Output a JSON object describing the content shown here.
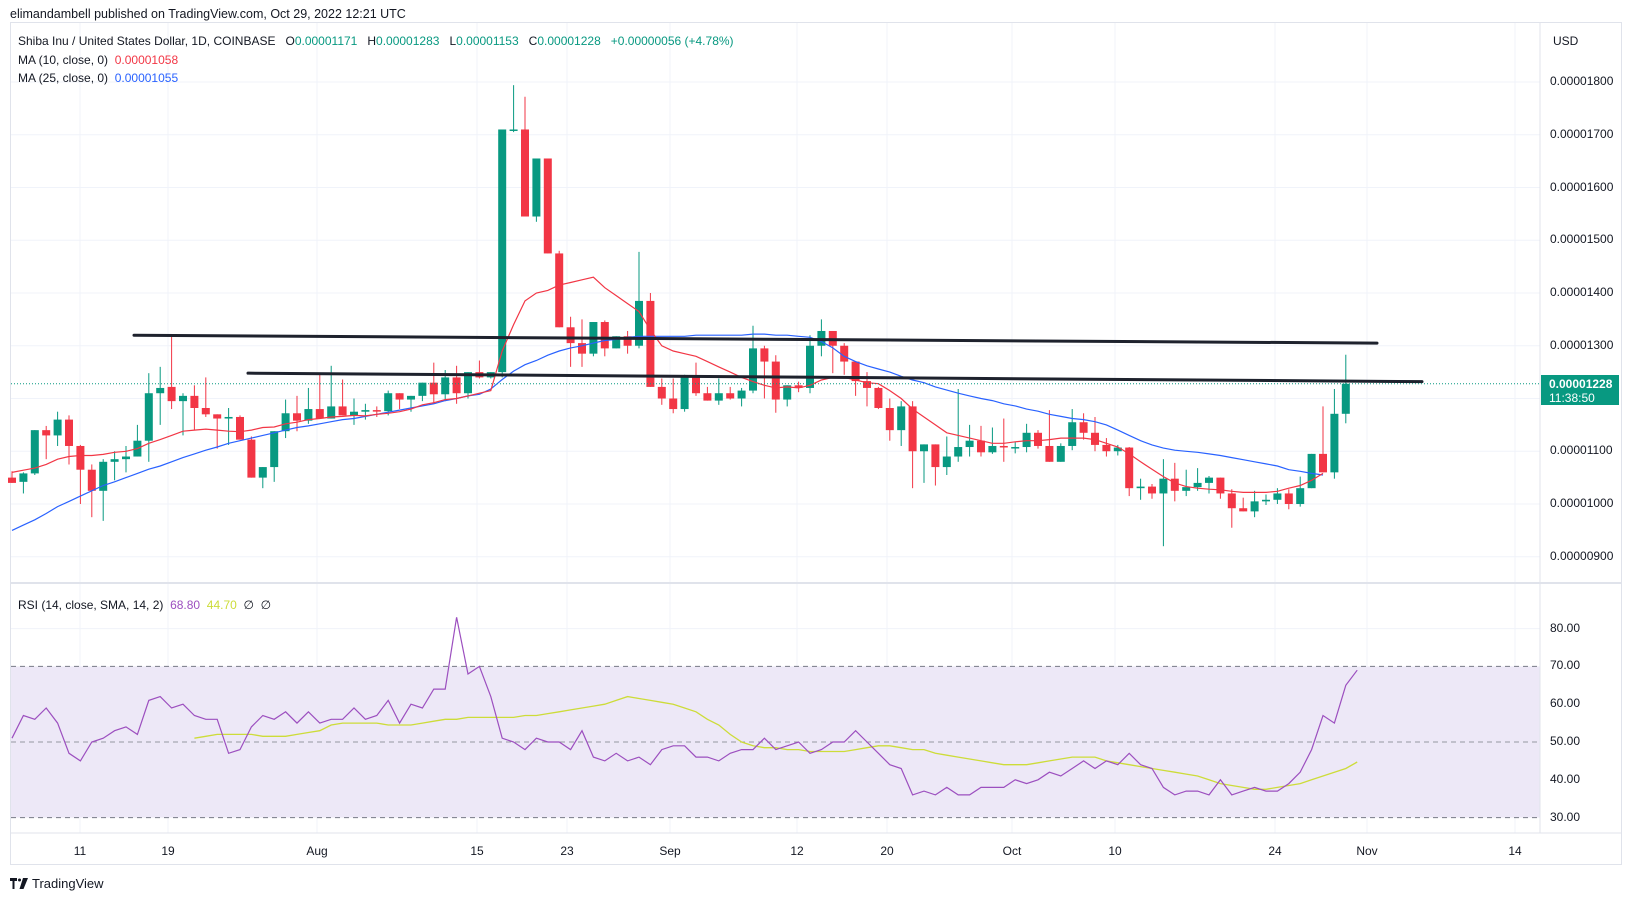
{
  "publisher": "elimandambell published on TradingView.com, Oct 29, 2022 12:21 UTC",
  "header": {
    "symbol": "Shiba Inu / United States Dollar, 1D, COINBASE",
    "open_label": "O",
    "open": "0.00001171",
    "high_label": "H",
    "high": "0.00001283",
    "low_label": "L",
    "low": "0.00001153",
    "close_label": "C",
    "close": "0.00001228",
    "change": "+0.00000056 (+4.78%)"
  },
  "indicators": {
    "ma10": {
      "label": "MA (10, close, 0)",
      "value": "0.00001058",
      "color": "#f23645"
    },
    "ma25": {
      "label": "MA (25, close, 0)",
      "value": "0.00001055",
      "color": "#2962ff"
    },
    "rsi": {
      "label": "RSI (14, close, SMA, 14, 2)",
      "value": "68.80",
      "sma_value": "44.70",
      "na1": "∅",
      "na2": "∅",
      "color": "#9c4fbf",
      "sma_color": "#cddc39"
    }
  },
  "price_axis": {
    "currency": "USD",
    "ticks": [
      "0.00001800",
      "0.00001700",
      "0.00001600",
      "0.00001500",
      "0.00001400",
      "0.00001300",
      "0.00001100",
      "0.00001000",
      "0.00000900"
    ],
    "current_price": "0.00001228",
    "countdown": "11:38:50"
  },
  "rsi_axis": {
    "ticks": [
      "80.00",
      "70.00",
      "60.00",
      "50.00",
      "40.00",
      "30.00"
    ]
  },
  "time_axis": {
    "ticks": [
      "11",
      "19",
      "Aug",
      "15",
      "23",
      "Sep",
      "12",
      "20",
      "Oct",
      "10",
      "24",
      "Nov",
      "14"
    ]
  },
  "footer": {
    "brand": "TradingView"
  },
  "colors": {
    "up": "#089981",
    "down": "#f23645",
    "ma10": "#f23645",
    "ma25": "#2962ff",
    "rsi": "#9c4fbf",
    "rsi_sma": "#cddc39",
    "trendline": "#1e222d",
    "rsi_band": "#ede8f7"
  },
  "chart_data": {
    "type": "candlestick",
    "title": "Shiba Inu / United States Dollar, 1D, COINBASE",
    "units": "USD x 1e-8",
    "x_start": "2022-07-05",
    "x_end": "2022-10-29",
    "ylim": [
      850,
      1850
    ],
    "ylabel": "USD",
    "ohlc": [
      [
        1050,
        1062,
        1045,
        1040
      ],
      [
        1042,
        1060,
        1020,
        1058
      ],
      [
        1058,
        1130,
        1055,
        1140
      ],
      [
        1140,
        1148,
        1085,
        1130
      ],
      [
        1130,
        1175,
        1110,
        1160
      ],
      [
        1160,
        1168,
        1075,
        1110
      ],
      [
        1110,
        1112,
        1000,
        1065
      ],
      [
        1065,
        1075,
        975,
        1025
      ],
      [
        1025,
        1085,
        968,
        1080
      ],
      [
        1080,
        1100,
        1045,
        1085
      ],
      [
        1085,
        1110,
        1060,
        1090
      ],
      [
        1090,
        1150,
        1090,
        1120
      ],
      [
        1120,
        1248,
        1080,
        1210
      ],
      [
        1210,
        1260,
        1150,
        1220
      ],
      [
        1222,
        1318,
        1180,
        1195
      ],
      [
        1195,
        1210,
        1130,
        1205
      ],
      [
        1205,
        1225,
        1140,
        1182
      ],
      [
        1182,
        1240,
        1165,
        1170
      ],
      [
        1170,
        1170,
        1105,
        1162
      ],
      [
        1162,
        1182,
        1112,
        1165
      ],
      [
        1165,
        1168,
        1125,
        1122
      ],
      [
        1122,
        1128,
        1060,
        1050
      ],
      [
        1050,
        1070,
        1030,
        1070
      ],
      [
        1070,
        1138,
        1042,
        1138
      ],
      [
        1138,
        1198,
        1125,
        1172
      ],
      [
        1172,
        1205,
        1138,
        1158
      ],
      [
        1158,
        1220,
        1152,
        1180
      ],
      [
        1180,
        1248,
        1165,
        1162
      ],
      [
        1162,
        1262,
        1170,
        1185
      ],
      [
        1185,
        1236,
        1180,
        1168
      ],
      [
        1168,
        1200,
        1150,
        1175
      ],
      [
        1175,
        1190,
        1160,
        1178
      ],
      [
        1178,
        1185,
        1165,
        1176
      ],
      [
        1176,
        1215,
        1168,
        1210
      ],
      [
        1210,
        1208,
        1180,
        1198
      ],
      [
        1198,
        1205,
        1175,
        1205
      ],
      [
        1205,
        1225,
        1195,
        1230
      ],
      [
        1230,
        1268,
        1190,
        1208
      ],
      [
        1208,
        1254,
        1195,
        1240
      ],
      [
        1240,
        1262,
        1190,
        1210
      ],
      [
        1210,
        1230,
        1200,
        1250
      ],
      [
        1250,
        1272,
        1238,
        1240
      ],
      [
        1240,
        1245,
        1238,
        1250
      ],
      [
        1250,
        1270,
        1240,
        1710
      ],
      [
        1710,
        1794,
        1705,
        1710
      ],
      [
        1710,
        1772,
        1580,
        1545
      ],
      [
        1545,
        1653,
        1535,
        1655
      ],
      [
        1655,
        1632,
        1475,
        1475
      ],
      [
        1475,
        1480,
        1350,
        1335
      ],
      [
        1335,
        1355,
        1260,
        1305
      ],
      [
        1305,
        1350,
        1260,
        1285
      ],
      [
        1285,
        1340,
        1280,
        1345
      ],
      [
        1345,
        1348,
        1280,
        1295
      ],
      [
        1295,
        1310,
        1300,
        1318
      ],
      [
        1318,
        1328,
        1285,
        1300
      ],
      [
        1300,
        1478,
        1295,
        1385
      ],
      [
        1385,
        1400,
        1228,
        1222
      ],
      [
        1222,
        1238,
        1188,
        1200
      ],
      [
        1200,
        1238,
        1172,
        1180
      ],
      [
        1180,
        1245,
        1175,
        1240
      ],
      [
        1240,
        1268,
        1205,
        1210
      ],
      [
        1210,
        1222,
        1200,
        1196
      ],
      [
        1196,
        1238,
        1188,
        1210
      ],
      [
        1210,
        1222,
        1198,
        1200
      ],
      [
        1200,
        1220,
        1185,
        1215
      ],
      [
        1215,
        1338,
        1210,
        1295
      ],
      [
        1295,
        1300,
        1200,
        1270
      ],
      [
        1270,
        1282,
        1173,
        1198
      ],
      [
        1198,
        1225,
        1185,
        1225
      ],
      [
        1225,
        1232,
        1212,
        1220
      ],
      [
        1220,
        1320,
        1210,
        1300
      ],
      [
        1300,
        1350,
        1280,
        1328
      ],
      [
        1328,
        1320,
        1248,
        1300
      ],
      [
        1300,
        1305,
        1245,
        1270
      ],
      [
        1270,
        1265,
        1205,
        1233
      ],
      [
        1233,
        1250,
        1185,
        1220
      ],
      [
        1220,
        1222,
        1180,
        1182
      ],
      [
        1182,
        1200,
        1120,
        1140
      ],
      [
        1140,
        1195,
        1110,
        1185
      ],
      [
        1185,
        1195,
        1030,
        1100
      ],
      [
        1100,
        1100,
        1040,
        1113
      ],
      [
        1113,
        1112,
        1035,
        1070
      ],
      [
        1070,
        1128,
        1055,
        1090
      ],
      [
        1090,
        1218,
        1080,
        1108
      ],
      [
        1108,
        1150,
        1090,
        1120
      ],
      [
        1120,
        1148,
        1090,
        1098
      ],
      [
        1098,
        1145,
        1095,
        1110
      ],
      [
        1110,
        1162,
        1080,
        1108
      ],
      [
        1108,
        1118,
        1096,
        1108
      ],
      [
        1108,
        1152,
        1098,
        1135
      ],
      [
        1135,
        1140,
        1105,
        1110
      ],
      [
        1110,
        1178,
        1120,
        1080
      ],
      [
        1080,
        1115,
        1090,
        1110
      ],
      [
        1110,
        1180,
        1102,
        1155
      ],
      [
        1155,
        1172,
        1122,
        1135
      ],
      [
        1135,
        1165,
        1100,
        1112
      ],
      [
        1112,
        1125,
        1090,
        1100
      ],
      [
        1100,
        1112,
        1092,
        1107
      ],
      [
        1107,
        1108,
        1015,
        1030
      ],
      [
        1030,
        1048,
        1008,
        1033
      ],
      [
        1033,
        1038,
        1010,
        1020
      ],
      [
        1020,
        1085,
        920,
        1048
      ],
      [
        1048,
        1078,
        1005,
        1025
      ],
      [
        1025,
        1065,
        1015,
        1032
      ],
      [
        1032,
        1068,
        1025,
        1040
      ],
      [
        1040,
        1053,
        1020,
        1050
      ],
      [
        1050,
        1038,
        1010,
        1020
      ],
      [
        1020,
        1028,
        955,
        992
      ],
      [
        992,
        1012,
        990,
        986
      ],
      [
        986,
        1025,
        975,
        1005
      ],
      [
        1005,
        1018,
        998,
        1008
      ],
      [
        1008,
        1030,
        1000,
        1020
      ],
      [
        1020,
        1028,
        990,
        1000
      ],
      [
        1000,
        1052,
        995,
        1030
      ],
      [
        1030,
        1085,
        1030,
        1095
      ],
      [
        1095,
        1185,
        1060,
        1060
      ],
      [
        1060,
        1218,
        1048,
        1171
      ],
      [
        1171,
        1283,
        1153,
        1228
      ]
    ],
    "ma10": [
      1060,
      1064,
      1068,
      1075,
      1085,
      1090,
      1092,
      1092,
      1094,
      1098,
      1100,
      1105,
      1115,
      1122,
      1130,
      1138,
      1140,
      1142,
      1140,
      1138,
      1137,
      1140,
      1145,
      1146,
      1152,
      1155,
      1160,
      1162,
      1165,
      1166,
      1168,
      1167,
      1170,
      1172,
      1175,
      1180,
      1188,
      1192,
      1198,
      1200,
      1205,
      1210,
      1215,
      1290,
      1340,
      1385,
      1400,
      1405,
      1415,
      1420,
      1425,
      1430,
      1410,
      1395,
      1380,
      1365,
      1330,
      1300,
      1290,
      1285,
      1280,
      1270,
      1260,
      1250,
      1240,
      1232,
      1225,
      1220,
      1222,
      1220,
      1225,
      1235,
      1240,
      1240,
      1235,
      1230,
      1228,
      1215,
      1200,
      1180,
      1165,
      1150,
      1135,
      1130,
      1125,
      1120,
      1115,
      1115,
      1118,
      1120,
      1120,
      1122,
      1125,
      1125,
      1125,
      1122,
      1115,
      1108,
      1095,
      1080,
      1066,
      1052,
      1040,
      1033,
      1030,
      1028,
      1027,
      1024,
      1022,
      1022,
      1022,
      1024,
      1030,
      1035,
      1045,
      1058
    ],
    "ma25": [
      950,
      960,
      970,
      982,
      995,
      1005,
      1015,
      1025,
      1035,
      1042,
      1050,
      1058,
      1066,
      1072,
      1080,
      1088,
      1095,
      1102,
      1108,
      1115,
      1120,
      1125,
      1130,
      1135,
      1140,
      1145,
      1148,
      1152,
      1156,
      1160,
      1162,
      1166,
      1170,
      1174,
      1178,
      1182,
      1186,
      1190,
      1196,
      1200,
      1205,
      1208,
      1218,
      1236,
      1252,
      1264,
      1272,
      1282,
      1290,
      1296,
      1300,
      1305,
      1310,
      1312,
      1316,
      1318,
      1318,
      1318,
      1318,
      1318,
      1320,
      1320,
      1320,
      1320,
      1320,
      1322,
      1322,
      1320,
      1320,
      1318,
      1316,
      1308,
      1296,
      1280,
      1270,
      1262,
      1256,
      1250,
      1242,
      1235,
      1230,
      1222,
      1216,
      1210,
      1205,
      1200,
      1196,
      1190,
      1186,
      1180,
      1176,
      1170,
      1166,
      1162,
      1160,
      1156,
      1150,
      1140,
      1130,
      1120,
      1112,
      1106,
      1102,
      1100,
      1098,
      1095,
      1092,
      1088,
      1084,
      1080,
      1076,
      1072,
      1065,
      1062,
      1058,
      1055
    ],
    "trendlines": [
      {
        "from": [
          "2022-07-15",
          1320
        ],
        "to": [
          "2022-10-31",
          1305
        ]
      },
      {
        "from": [
          "2022-07-25",
          1248
        ],
        "to": [
          "2022-11-02",
          1232
        ]
      }
    ],
    "rsi": [
      51,
      57,
      56,
      59,
      55,
      47,
      45,
      50,
      51,
      53,
      54,
      52,
      61,
      62,
      59,
      60,
      57,
      56,
      56,
      47,
      48,
      54,
      57,
      56,
      58,
      55,
      58,
      55,
      56,
      56,
      59,
      56,
      57,
      61,
      55,
      60,
      59,
      64,
      64,
      83,
      68,
      70,
      62,
      51,
      50,
      48,
      51,
      50,
      50,
      48,
      53,
      46,
      45,
      47,
      45,
      46,
      44,
      48,
      49,
      49,
      46,
      46,
      45,
      47,
      48,
      48,
      51,
      48,
      49,
      50,
      47,
      48,
      50,
      50,
      53,
      50,
      47,
      44,
      43,
      36,
      37,
      36,
      38,
      36,
      36,
      38,
      38,
      38,
      40,
      39,
      40,
      42,
      41,
      43,
      45,
      43,
      45,
      44,
      47,
      44,
      43,
      38,
      36,
      37,
      37,
      36,
      40,
      36,
      37,
      38,
      37,
      37,
      39,
      42,
      48,
      57,
      55,
      65,
      69
    ],
    "rsi_sma": [
      51,
      51.5,
      52,
      52,
      52,
      52,
      51.5,
      51.5,
      51.5,
      52,
      52.5,
      53,
      54.5,
      55,
      55,
      55,
      55,
      54.5,
      54.5,
      54.5,
      55,
      55.5,
      56,
      56,
      56.5,
      56.5,
      56.5,
      56.5,
      56.5,
      57,
      57,
      57.5,
      58,
      58.5,
      59,
      59.5,
      60,
      61,
      62,
      61.5,
      61,
      60.5,
      60,
      59,
      58,
      56,
      54.5,
      52,
      50,
      49,
      48.5,
      48.5,
      48,
      48,
      47.5,
      47.5,
      47.5,
      47.5,
      48,
      48.5,
      49,
      49,
      48.5,
      48,
      48,
      47,
      46.5,
      46,
      45.5,
      45,
      44.5,
      44,
      44,
      44,
      44.5,
      45,
      45.5,
      46,
      46,
      46,
      45,
      44.5,
      44,
      43.5,
      43,
      42.5,
      42,
      41.5,
      41,
      40,
      39,
      38.5,
      38,
      37.5,
      37.5,
      38,
      38.5,
      39,
      40,
      41,
      42,
      43,
      44.7
    ],
    "rsi_levels": {
      "upper": 70,
      "middle": 50,
      "lower": 30
    },
    "rsi_ylim": [
      25,
      85
    ]
  }
}
